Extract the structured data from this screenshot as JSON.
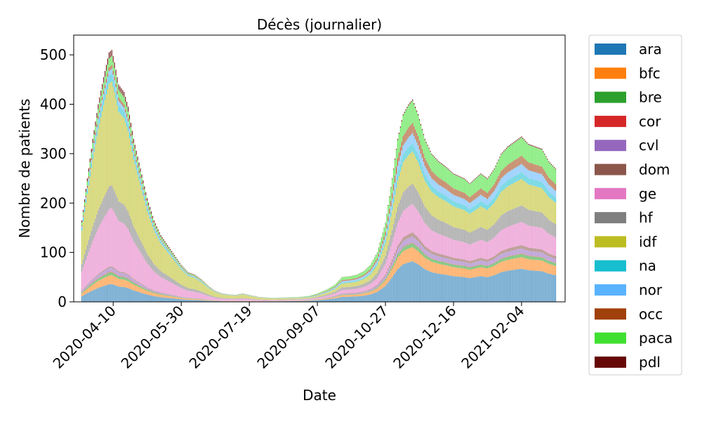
{
  "chart_data": {
    "type": "bar",
    "stacked": true,
    "title": "Décès (journalier)",
    "xlabel": "Date",
    "ylabel": "Nombre de patients",
    "ylim": [
      0,
      540
    ],
    "yticks": [
      0,
      100,
      200,
      300,
      400,
      500
    ],
    "x_start": "2020-03-18",
    "x_end": "2021-03-01",
    "xlim": [
      "2020-03-12",
      "2021-03-08"
    ],
    "xticks": [
      "2020-04-10",
      "2020-05-30",
      "2020-07-19",
      "2020-09-07",
      "2020-10-27",
      "2020-12-16",
      "2021-02-04"
    ],
    "grid": false,
    "legend_position": "outside-right",
    "total_profile": [
      [
        "2020-03-18",
        165
      ],
      [
        "2020-03-22",
        250
      ],
      [
        "2020-03-26",
        330
      ],
      [
        "2020-03-30",
        400
      ],
      [
        "2020-04-03",
        455
      ],
      [
        "2020-04-07",
        505
      ],
      [
        "2020-04-09",
        510
      ],
      [
        "2020-04-11",
        485
      ],
      [
        "2020-04-14",
        440
      ],
      [
        "2020-04-18",
        425
      ],
      [
        "2020-04-21",
        395
      ],
      [
        "2020-04-25",
        330
      ],
      [
        "2020-04-30",
        270
      ],
      [
        "2020-05-05",
        210
      ],
      [
        "2020-05-10",
        165
      ],
      [
        "2020-05-15",
        135
      ],
      [
        "2020-05-20",
        115
      ],
      [
        "2020-05-25",
        95
      ],
      [
        "2020-05-30",
        75
      ],
      [
        "2020-06-04",
        60
      ],
      [
        "2020-06-09",
        55
      ],
      [
        "2020-06-14",
        45
      ],
      [
        "2020-06-19",
        32
      ],
      [
        "2020-06-24",
        22
      ],
      [
        "2020-06-29",
        17
      ],
      [
        "2020-07-04",
        15
      ],
      [
        "2020-07-09",
        14
      ],
      [
        "2020-07-14",
        17
      ],
      [
        "2020-07-19",
        14
      ],
      [
        "2020-07-26",
        10
      ],
      [
        "2020-08-05",
        8
      ],
      [
        "2020-08-15",
        9
      ],
      [
        "2020-08-25",
        10
      ],
      [
        "2020-09-01",
        12
      ],
      [
        "2020-09-07",
        17
      ],
      [
        "2020-09-14",
        25
      ],
      [
        "2020-09-20",
        35
      ],
      [
        "2020-09-25",
        50
      ],
      [
        "2020-10-01",
        52
      ],
      [
        "2020-10-06",
        55
      ],
      [
        "2020-10-11",
        62
      ],
      [
        "2020-10-16",
        75
      ],
      [
        "2020-10-21",
        100
      ],
      [
        "2020-10-27",
        160
      ],
      [
        "2020-11-01",
        250
      ],
      [
        "2020-11-05",
        330
      ],
      [
        "2020-11-09",
        380
      ],
      [
        "2020-11-13",
        400
      ],
      [
        "2020-11-16",
        410
      ],
      [
        "2020-11-20",
        380
      ],
      [
        "2020-11-25",
        330
      ],
      [
        "2020-11-30",
        300
      ],
      [
        "2020-12-05",
        285
      ],
      [
        "2020-12-10",
        275
      ],
      [
        "2020-12-16",
        260
      ],
      [
        "2020-12-20",
        255
      ],
      [
        "2020-12-24",
        250
      ],
      [
        "2020-12-28",
        240
      ],
      [
        "2021-01-01",
        250
      ],
      [
        "2021-01-05",
        260
      ],
      [
        "2021-01-10",
        250
      ],
      [
        "2021-01-15",
        270
      ],
      [
        "2021-01-20",
        300
      ],
      [
        "2021-01-25",
        315
      ],
      [
        "2021-01-30",
        325
      ],
      [
        "2021-02-04",
        335
      ],
      [
        "2021-02-09",
        320
      ],
      [
        "2021-02-14",
        315
      ],
      [
        "2021-02-19",
        310
      ],
      [
        "2021-02-24",
        285
      ],
      [
        "2021-03-01",
        270
      ]
    ],
    "series": [
      {
        "name": "ara",
        "color": "#1f77b4",
        "wave1": 0.07,
        "wave2": 0.2
      },
      {
        "name": "bfc",
        "color": "#ff7f0e",
        "wave1": 0.035,
        "wave2": 0.07
      },
      {
        "name": "bre",
        "color": "#2ca02c",
        "wave1": 0.012,
        "wave2": 0.02
      },
      {
        "name": "cor",
        "color": "#d62728",
        "wave1": 0.003,
        "wave2": 0.003
      },
      {
        "name": "cvl",
        "color": "#9467bd",
        "wave1": 0.015,
        "wave2": 0.03
      },
      {
        "name": "dom",
        "color": "#8c564b",
        "wave1": 0.005,
        "wave2": 0.02
      },
      {
        "name": "ge",
        "color": "#e377c2",
        "wave1": 0.23,
        "wave2": 0.14
      },
      {
        "name": "hf",
        "color": "#7f7f7f",
        "wave1": 0.09,
        "wave2": 0.1
      },
      {
        "name": "idf",
        "color": "#bcbd22",
        "wave1": 0.41,
        "wave2": 0.16
      },
      {
        "name": "na",
        "color": "#17becf",
        "wave1": 0.03,
        "wave2": 0.04
      },
      {
        "name": "nor",
        "color": "#5ab3ff",
        "wave1": 0.02,
        "wave2": 0.05
      },
      {
        "name": "occ",
        "color": "#a0400a",
        "wave1": 0.015,
        "wave2": 0.05
      },
      {
        "name": "paca",
        "color": "#40e030",
        "wave1": 0.035,
        "wave2": 0.11
      },
      {
        "name": "pdl",
        "color": "#660808",
        "wave1": 0.025,
        "wave2": 0.007
      }
    ]
  }
}
